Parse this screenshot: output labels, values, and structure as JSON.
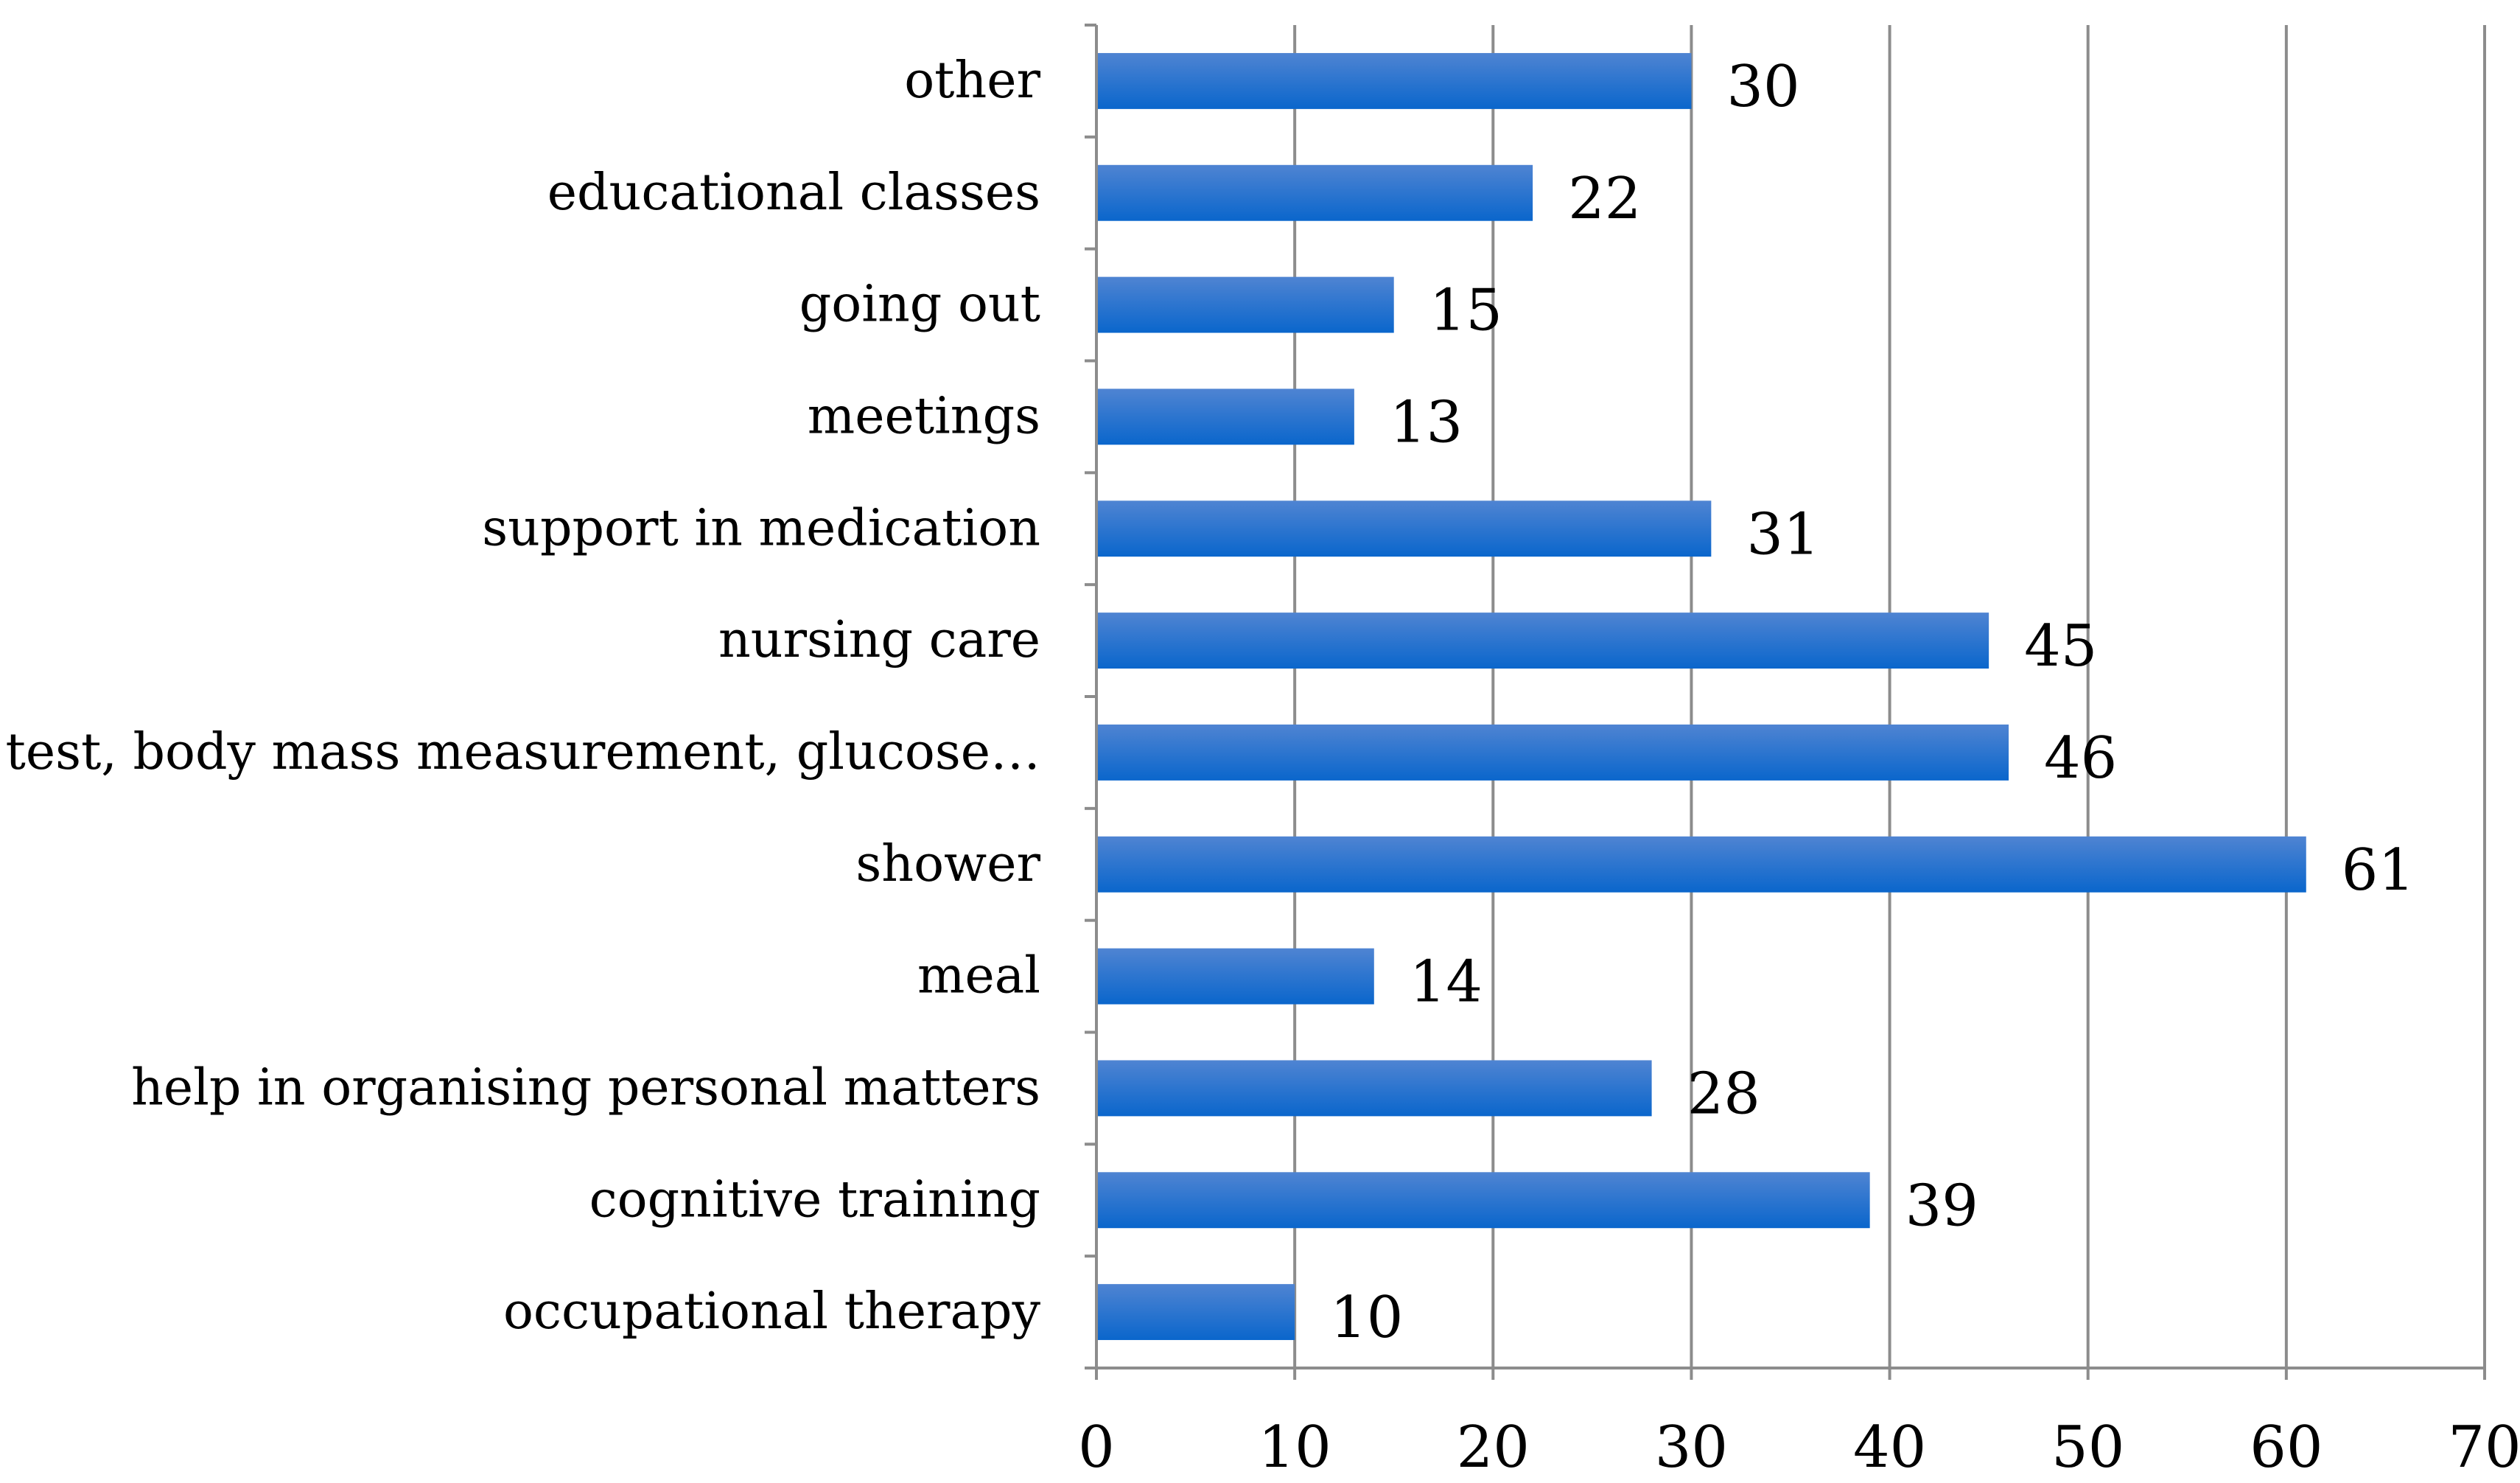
{
  "chart_data": {
    "type": "bar",
    "orientation": "horizontal",
    "title": "",
    "xlabel": "",
    "ylabel": "",
    "categories": [
      "occupational therapy",
      "cognitive training",
      "help in organising personal matters",
      "meal",
      "shower",
      "RR test, body mass measurement, glucose…",
      "nursing care",
      "support in medication",
      "meetings",
      "going out",
      "educational classes",
      "other"
    ],
    "values": [
      10,
      39,
      28,
      14,
      61,
      46,
      45,
      31,
      13,
      15,
      22,
      30
    ],
    "value_labels": [
      "10",
      "39",
      "28",
      "14",
      "61",
      "46",
      "45",
      "31",
      "13",
      "15",
      "22",
      "30"
    ],
    "xlim": [
      0,
      70
    ],
    "x_ticks": [
      0,
      10,
      20,
      30,
      40,
      50,
      60,
      70
    ],
    "x_tick_labels": [
      "0",
      "10",
      "20",
      "30",
      "40",
      "50",
      "60",
      "70"
    ],
    "grid": "vertical",
    "legend": "none",
    "colors": {
      "bar_top": "#4f84d2",
      "bar_bottom": "#0a66cc",
      "grid": "#8c8c8c",
      "text": "#000000"
    }
  }
}
